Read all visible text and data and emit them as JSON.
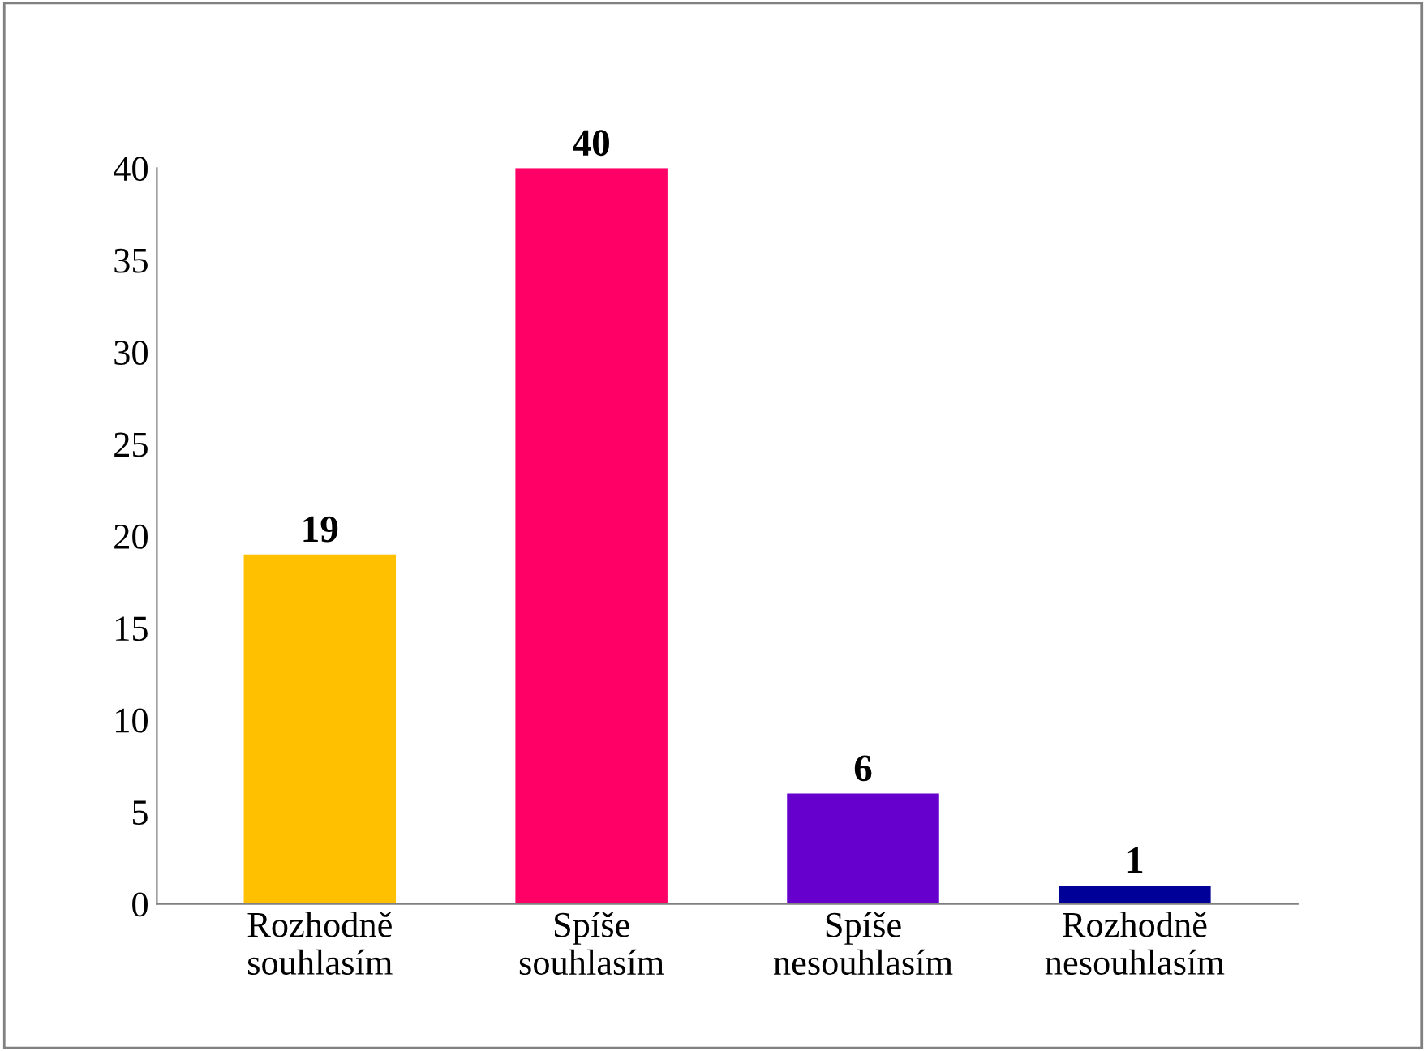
{
  "chart_data": {
    "type": "bar",
    "categories": [
      "Rozhodně\nsouhlasím",
      "Spíše\nsouhlasím",
      "Spíše\nnesouhlasím",
      "Rozhodně\nnesouhlasím"
    ],
    "values": [
      19,
      40,
      6,
      1
    ],
    "colors": [
      "#ffc000",
      "#ff0066",
      "#6600cc",
      "#000099"
    ],
    "ylim": [
      0,
      40
    ],
    "yticks": [
      0,
      5,
      10,
      15,
      20,
      25,
      30,
      35,
      40
    ],
    "grid": false,
    "legend": false,
    "data_labels": true
  }
}
